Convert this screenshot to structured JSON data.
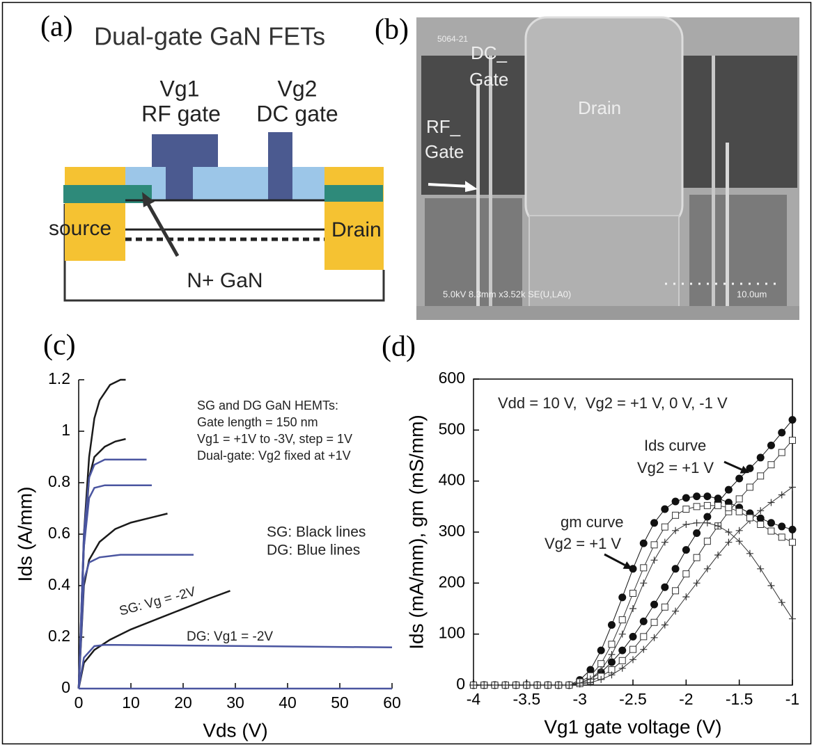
{
  "panel_labels": [
    "(a)",
    "(b)",
    "(c)",
    "(d)"
  ],
  "diagram": {
    "title": "Dual-gate GaN FETs",
    "gate1": [
      "Vg1",
      "RF gate"
    ],
    "gate2": [
      "Vg2",
      "DC gate"
    ],
    "source": "source",
    "drain": "Drain",
    "layer": "N+ GaN"
  },
  "micrograph": {
    "id": "5064-21",
    "dc_gate": [
      "DC_",
      "Gate"
    ],
    "rf_gate": [
      "RF_",
      "Gate"
    ],
    "drain": "Drain",
    "info": "5.0kV 8.3mm x3.52k SE(U,LA0)",
    "scale": "10.0um"
  },
  "chart_data": [
    {
      "type": "line",
      "x_label": "Vds (V)",
      "y_label": "Ids (A/mm)",
      "xlim": [
        0,
        60
      ],
      "xticks": [
        0,
        10,
        20,
        30,
        40,
        50,
        60
      ],
      "ylim": [
        0,
        1.2
      ],
      "yticks": [
        0,
        0.2,
        0.4,
        0.6,
        0.8,
        1,
        1.2
      ],
      "frame": false,
      "annotations": [
        "SG and DG GaN HEMTs:",
        "Gate length = 150 nm",
        "Vg1 = +1V to -3V, step = 1V",
        "Dual-gate: Vg2 fixed at +1V",
        "SG: Black lines",
        "DG: Blue lines",
        "SG: Vg = -2V",
        "DG: Vg1 = -2V"
      ],
      "series": [
        {
          "color": "#1a1a1a",
          "x": [
            0,
            1,
            2,
            3,
            4,
            6,
            8,
            9
          ],
          "values": [
            0,
            0.6,
            0.9,
            1.05,
            1.12,
            1.18,
            1.2,
            1.2
          ]
        },
        {
          "color": "#1a1a1a",
          "x": [
            0,
            1,
            2,
            3,
            5,
            7,
            9
          ],
          "values": [
            0,
            0.55,
            0.82,
            0.9,
            0.94,
            0.96,
            0.97
          ]
        },
        {
          "color": "#4a55a0",
          "x": [
            0,
            1,
            2,
            3,
            5,
            13
          ],
          "values": [
            0,
            0.6,
            0.82,
            0.87,
            0.89,
            0.89
          ]
        },
        {
          "color": "#4a55a0",
          "x": [
            0,
            1,
            2,
            3,
            5,
            14
          ],
          "values": [
            0,
            0.55,
            0.74,
            0.78,
            0.79,
            0.79
          ]
        },
        {
          "color": "#1a1a1a",
          "x": [
            0,
            1,
            2,
            4,
            7,
            10,
            14,
            17
          ],
          "values": [
            0,
            0.4,
            0.5,
            0.57,
            0.62,
            0.645,
            0.665,
            0.68
          ]
        },
        {
          "color": "#4a55a0",
          "x": [
            0,
            1,
            2,
            4,
            8,
            22
          ],
          "values": [
            0,
            0.42,
            0.49,
            0.51,
            0.52,
            0.52
          ]
        },
        {
          "color": "#1a1a1a",
          "x": [
            0,
            1,
            3,
            6,
            10,
            15,
            20,
            25,
            29
          ],
          "values": [
            0,
            0.1,
            0.15,
            0.19,
            0.23,
            0.27,
            0.31,
            0.35,
            0.38
          ]
        },
        {
          "color": "#4a55a0",
          "x": [
            0,
            1,
            3,
            5,
            60
          ],
          "values": [
            0,
            0.12,
            0.165,
            0.17,
            0.16
          ]
        },
        {
          "color": "#4a55a0",
          "x": [
            0,
            60
          ],
          "values": [
            0,
            0
          ]
        }
      ]
    },
    {
      "type": "line",
      "x_label": "Vg1 gate voltage (V)",
      "y_label": "Ids (mA/mm), gm (mS/mm)",
      "xlim": [
        -4,
        -1
      ],
      "xticks": [
        -4,
        -3.5,
        -3,
        -2.5,
        -2,
        -1.5,
        -1
      ],
      "ylim": [
        0,
        600
      ],
      "yticks": [
        0,
        100,
        200,
        300,
        400,
        500,
        600
      ],
      "frame": true,
      "annotations": [
        "Vdd = 10 V,  Vg2 = +1 V, 0 V, -1 V",
        "Ids curve",
        "Vg2 = +1 V",
        "gm curve",
        "Vg2 = +1 V"
      ],
      "x": [
        -4,
        -3.9,
        -3.8,
        -3.7,
        -3.6,
        -3.5,
        -3.4,
        -3.3,
        -3.2,
        -3.1,
        -3,
        -2.9,
        -2.8,
        -2.7,
        -2.6,
        -2.5,
        -2.4,
        -2.3,
        -2.2,
        -2.1,
        -2,
        -1.9,
        -1.8,
        -1.7,
        -1.6,
        -1.5,
        -1.4,
        -1.3,
        -1.2,
        -1.1,
        -1
      ],
      "series": [
        {
          "color": "#111111",
          "marker": "circle",
          "values": [
            0,
            0,
            0,
            0,
            0,
            0,
            0,
            0,
            0,
            0,
            5,
            12,
            25,
            45,
            68,
            95,
            125,
            158,
            192,
            228,
            265,
            298,
            330,
            358,
            383,
            405,
            425,
            446,
            470,
            495,
            520
          ]
        },
        {
          "color": "#333333",
          "marker": "square",
          "values": [
            0,
            0,
            0,
            0,
            0,
            0,
            0,
            0,
            0,
            0,
            3,
            8,
            17,
            30,
            48,
            70,
            95,
            123,
            153,
            185,
            218,
            250,
            282,
            312,
            340,
            365,
            388,
            410,
            432,
            456,
            480
          ]
        },
        {
          "color": "#333333",
          "marker": "plus",
          "values": [
            0,
            0,
            0,
            0,
            0,
            0,
            0,
            0,
            0,
            0,
            2,
            5,
            11,
            20,
            33,
            50,
            70,
            93,
            118,
            145,
            173,
            200,
            228,
            255,
            280,
            303,
            323,
            342,
            358,
            373,
            388
          ]
        },
        {
          "color": "#111111",
          "marker": "circle",
          "values": [
            0,
            0,
            0,
            0,
            0,
            0,
            0,
            0,
            0,
            0,
            10,
            30,
            68,
            118,
            172,
            228,
            278,
            318,
            345,
            360,
            367,
            370,
            370,
            366,
            358,
            348,
            337,
            327,
            318,
            311,
            305
          ]
        },
        {
          "color": "#333333",
          "marker": "square",
          "values": [
            0,
            0,
            0,
            0,
            0,
            0,
            0,
            0,
            0,
            0,
            6,
            18,
            42,
            80,
            128,
            180,
            230,
            275,
            310,
            333,
            345,
            350,
            352,
            352,
            348,
            340,
            328,
            315,
            302,
            290,
            280
          ]
        },
        {
          "color": "#333333",
          "marker": "plus",
          "values": [
            0,
            0,
            0,
            0,
            0,
            0,
            0,
            0,
            0,
            0,
            4,
            12,
            30,
            60,
            100,
            150,
            200,
            245,
            280,
            303,
            315,
            318,
            318,
            312,
            300,
            282,
            258,
            228,
            195,
            162,
            130
          ]
        }
      ]
    }
  ]
}
